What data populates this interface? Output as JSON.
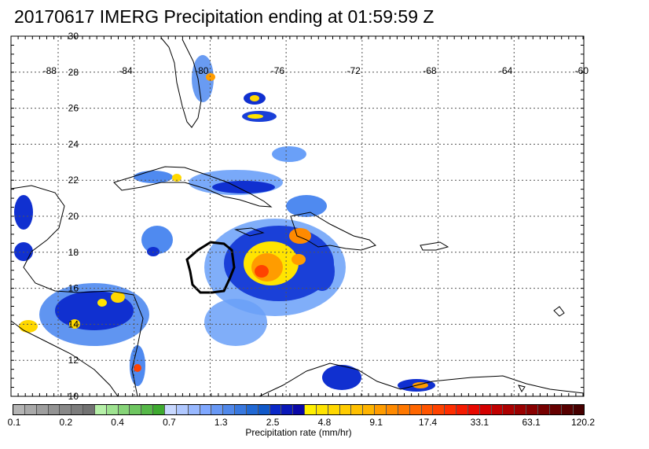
{
  "title": "20170617 IMERG Precipitation ending at 01:59:59 Z",
  "map": {
    "lon_labels": [
      "-88",
      "-84",
      "-80",
      "-76",
      "-72",
      "-68",
      "-64",
      "-60"
    ],
    "lat_labels": [
      "30",
      "28",
      "26",
      "24",
      "22",
      "20",
      "18",
      "16",
      "14",
      "12",
      "10"
    ],
    "lon_range": [
      -88,
      -60
    ],
    "lat_range": [
      10,
      30
    ]
  },
  "colorbar": {
    "label": "Precipitation rate (mm/hr)",
    "tick_labels": [
      "0.1",
      "0.2",
      "0.4",
      "0.7",
      "1.3",
      "2.5",
      "4.8",
      "9.1",
      "17.4",
      "33.1",
      "63.1",
      "120.2"
    ],
    "colors": [
      "#b4b4b4",
      "#a9a9a9",
      "#9e9e9e",
      "#939393",
      "#888888",
      "#7d7d7d",
      "#727272",
      "#b6f0a8",
      "#9ee290",
      "#86d478",
      "#6ec660",
      "#56b848",
      "#3eaa30",
      "#c8d8ff",
      "#b0c8ff",
      "#98b8ff",
      "#80a8ff",
      "#6898f5",
      "#5088ea",
      "#3878df",
      "#2068d4",
      "#1058c9",
      "#0a28c8",
      "#0a18b8",
      "#0a08a8",
      "#fff000",
      "#ffe400",
      "#ffd800",
      "#ffcc00",
      "#ffc000",
      "#ffb400",
      "#ff9c00",
      "#ff8a00",
      "#ff7800",
      "#ff6600",
      "#ff5400",
      "#ff4200",
      "#ff2e00",
      "#f51a00",
      "#e80800",
      "#d40000",
      "#c00000",
      "#ac0000",
      "#9a0000",
      "#880000",
      "#760000",
      "#660000",
      "#560000",
      "#460000"
    ]
  }
}
